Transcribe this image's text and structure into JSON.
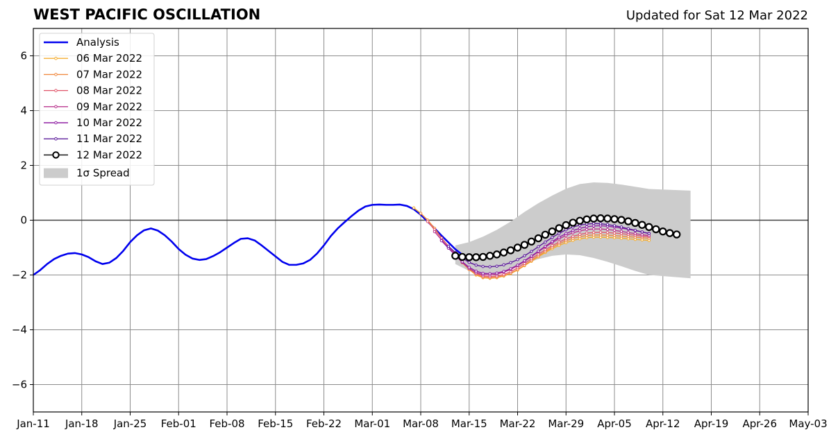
{
  "chart_data": {
    "type": "line",
    "title": "WEST PACIFIC OSCILLATION",
    "subtitle": "Updated for Sat 12 Mar 2022",
    "xlabel": "",
    "ylabel": "",
    "x_tick_labels": [
      "Jan-11",
      "Jan-18",
      "Jan-25",
      "Feb-01",
      "Feb-08",
      "Feb-15",
      "Feb-22",
      "Mar-01",
      "Mar-08",
      "Mar-15",
      "Mar-22",
      "Mar-29",
      "Apr-05",
      "Apr-12",
      "Apr-19",
      "Apr-26",
      "May-03"
    ],
    "xlim": [
      "2022-01-11",
      "2022-05-03"
    ],
    "y_ticks": [
      6,
      4,
      2,
      0,
      -2,
      -4,
      -6
    ],
    "y_tick_labels": [
      "6",
      "4",
      "2",
      "0",
      "−2",
      "−4",
      "−6"
    ],
    "ylim": [
      -7,
      7
    ],
    "grid": true,
    "legend_position": "top-left",
    "analysis": {
      "name": "Analysis",
      "color": "#0000ee",
      "x_start": "2022-01-11",
      "values": [
        -2.0,
        -1.82,
        -1.6,
        -1.42,
        -1.3,
        -1.22,
        -1.2,
        -1.25,
        -1.35,
        -1.5,
        -1.6,
        -1.55,
        -1.38,
        -1.12,
        -0.8,
        -0.55,
        -0.37,
        -0.3,
        -0.38,
        -0.55,
        -0.78,
        -1.05,
        -1.26,
        -1.4,
        -1.45,
        -1.42,
        -1.31,
        -1.17,
        -1.0,
        -0.83,
        -0.68,
        -0.66,
        -0.74,
        -0.92,
        -1.12,
        -1.32,
        -1.52,
        -1.63,
        -1.63,
        -1.58,
        -1.45,
        -1.22,
        -0.92,
        -0.58,
        -0.3,
        -0.07,
        0.15,
        0.35,
        0.5,
        0.56,
        0.57,
        0.56,
        0.56,
        0.57,
        0.52,
        0.4,
        0.2,
        -0.05,
        -0.3,
        -0.56,
        -0.81,
        -1.06,
        -1.26
      ]
    },
    "forecasts": [
      {
        "name": "06 Mar 2022",
        "color": "#f5ad2f",
        "x_start": "2022-03-07",
        "values": [
          0.45,
          0.25,
          0.0,
          -0.3,
          -0.65,
          -0.95,
          -1.25,
          -1.55,
          -1.8,
          -2.0,
          -2.1,
          -2.12,
          -2.1,
          -2.04,
          -1.95,
          -1.82,
          -1.66,
          -1.5,
          -1.34,
          -1.18,
          -1.04,
          -0.92,
          -0.82,
          -0.74,
          -0.68,
          -0.64,
          -0.62,
          -0.62,
          -0.63,
          -0.64,
          -0.66,
          -0.68,
          -0.7,
          -0.72,
          -0.74
        ]
      },
      {
        "name": "07 Mar 2022",
        "color": "#f08a41",
        "x_start": "2022-03-08",
        "values": [
          0.25,
          0.0,
          -0.3,
          -0.65,
          -0.95,
          -1.25,
          -1.55,
          -1.8,
          -1.98,
          -2.08,
          -2.1,
          -2.08,
          -2.02,
          -1.93,
          -1.8,
          -1.64,
          -1.47,
          -1.3,
          -1.14,
          -0.99,
          -0.86,
          -0.75,
          -0.66,
          -0.6,
          -0.56,
          -0.54,
          -0.54,
          -0.55,
          -0.56,
          -0.58,
          -0.6,
          -0.62,
          -0.64,
          -0.66
        ]
      },
      {
        "name": "08 Mar 2022",
        "color": "#e05a6e",
        "x_start": "2022-03-09",
        "values": [
          -0.05,
          -0.35,
          -0.65,
          -0.95,
          -1.25,
          -1.52,
          -1.76,
          -1.94,
          -2.04,
          -2.06,
          -2.04,
          -1.98,
          -1.88,
          -1.74,
          -1.58,
          -1.41,
          -1.24,
          -1.08,
          -0.93,
          -0.8,
          -0.68,
          -0.59,
          -0.52,
          -0.47,
          -0.45,
          -0.44,
          -0.45,
          -0.47,
          -0.49,
          -0.52,
          -0.55,
          -0.58,
          -0.6
        ]
      },
      {
        "name": "09 Mar 2022",
        "color": "#b9358e",
        "x_start": "2022-03-10",
        "values": [
          -0.42,
          -0.72,
          -1.0,
          -1.28,
          -1.54,
          -1.76,
          -1.92,
          -1.99,
          -2.0,
          -1.97,
          -1.9,
          -1.8,
          -1.66,
          -1.5,
          -1.33,
          -1.15,
          -0.98,
          -0.82,
          -0.68,
          -0.56,
          -0.46,
          -0.39,
          -0.34,
          -0.32,
          -0.32,
          -0.34,
          -0.37,
          -0.41,
          -0.45,
          -0.49,
          -0.53,
          -0.56
        ]
      },
      {
        "name": "10 Mar 2022",
        "color": "#8f20a3",
        "x_start": "2022-03-11",
        "values": [
          -0.75,
          -1.02,
          -1.28,
          -1.52,
          -1.72,
          -1.86,
          -1.94,
          -1.95,
          -1.93,
          -1.87,
          -1.77,
          -1.64,
          -1.48,
          -1.31,
          -1.13,
          -0.95,
          -0.78,
          -0.62,
          -0.49,
          -0.38,
          -0.3,
          -0.24,
          -0.21,
          -0.2,
          -0.22,
          -0.25,
          -0.29,
          -0.33,
          -0.38,
          -0.43,
          -0.48
        ]
      },
      {
        "name": "11 Mar 2022",
        "color": "#5a189a",
        "x_start": "2022-03-12",
        "values": [
          -0.95,
          -1.18,
          -1.38,
          -1.54,
          -1.64,
          -1.69,
          -1.7,
          -1.68,
          -1.63,
          -1.55,
          -1.44,
          -1.3,
          -1.14,
          -0.97,
          -0.8,
          -0.63,
          -0.48,
          -0.35,
          -0.25,
          -0.18,
          -0.14,
          -0.12,
          -0.13,
          -0.16,
          -0.2,
          -0.25,
          -0.31,
          -0.37,
          -0.43,
          -0.49
        ]
      },
      {
        "name": "12 Mar 2022",
        "color": "#000000",
        "x_start": "2022-03-13",
        "values": [
          -1.3,
          -1.34,
          -1.35,
          -1.35,
          -1.34,
          -1.3,
          -1.25,
          -1.18,
          -1.1,
          -1.0,
          -0.9,
          -0.78,
          -0.66,
          -0.53,
          -0.41,
          -0.29,
          -0.18,
          -0.09,
          -0.02,
          0.03,
          0.06,
          0.07,
          0.06,
          0.04,
          0.01,
          -0.04,
          -0.1,
          -0.17,
          -0.25,
          -0.33,
          -0.41,
          -0.47,
          -0.52
        ]
      }
    ],
    "spread": {
      "name": "1σ Spread",
      "color": "#cccccc",
      "x_start": "2022-03-13",
      "upper": [
        -0.92,
        -0.85,
        -0.75,
        -0.6,
        -0.42,
        -0.22,
        0.0,
        0.25,
        0.5,
        0.75,
        1.0,
        1.3
      ],
      "lower": [
        -1.6,
        -1.8,
        -1.9,
        -1.8,
        -1.6,
        -1.4,
        -1.3,
        -1.3,
        -1.4,
        -1.6,
        -1.85,
        -2.1
      ],
      "x_offsets_days": [
        0,
        3,
        6,
        9,
        12,
        15,
        18,
        21,
        24,
        27,
        30,
        34
      ],
      "upper_fine": [
        -0.92,
        -0.8,
        -0.6,
        -0.35,
        -0.05,
        0.3,
        0.62,
        0.9,
        1.15,
        1.32,
        1.38,
        1.36,
        1.3,
        1.22,
        1.14,
        1.08
      ],
      "lower_fine": [
        -1.6,
        -1.85,
        -1.98,
        -1.95,
        -1.8,
        -1.6,
        -1.42,
        -1.3,
        -1.25,
        -1.28,
        -1.38,
        -1.52,
        -1.68,
        -1.85,
        -2.0,
        -2.12
      ],
      "fine_offsets_days": [
        0,
        2,
        4,
        6,
        8,
        10,
        12,
        14,
        16,
        18,
        20,
        22,
        24,
        26,
        28,
        34
      ]
    }
  }
}
